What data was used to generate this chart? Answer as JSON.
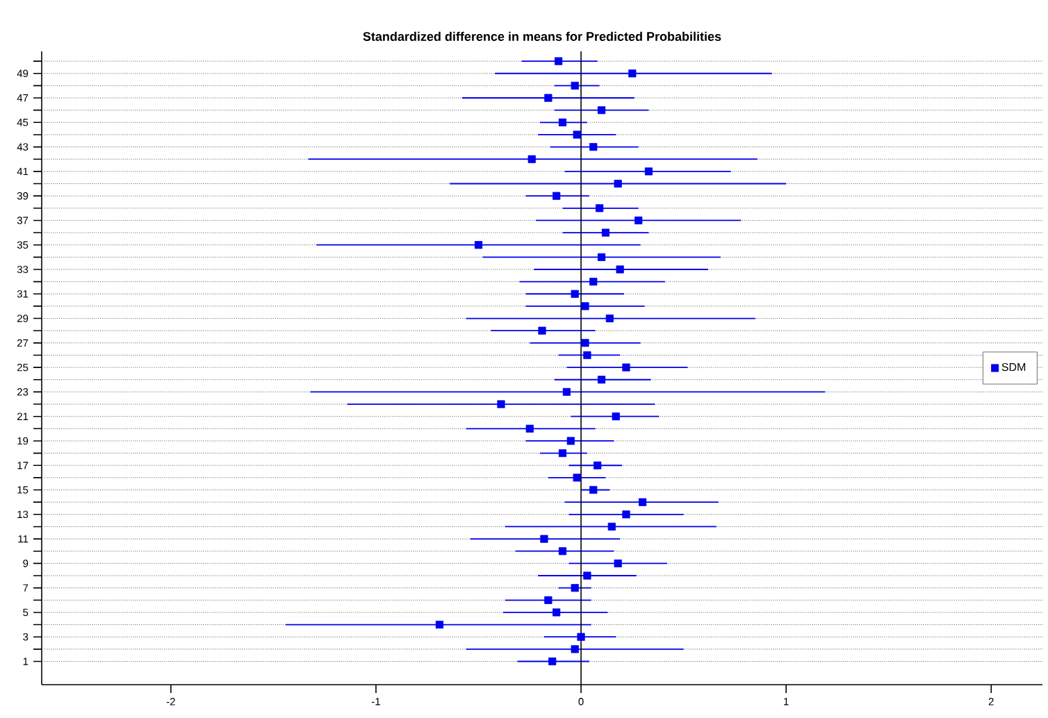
{
  "chart_data": {
    "type": "scatter",
    "title": "Standardized difference in means for Predicted Probabilities",
    "series": [
      {
        "name": "SDM",
        "color": "#0000ee",
        "x": [
          -0.14,
          -0.03,
          0.0,
          -0.69,
          -0.12,
          -0.16,
          -0.03,
          0.03,
          0.18,
          -0.09,
          -0.18,
          0.15,
          0.22,
          0.3,
          0.06,
          -0.02,
          0.08,
          -0.09,
          -0.05,
          -0.25,
          0.17,
          -0.39,
          -0.07,
          0.1,
          0.22,
          0.03,
          0.02,
          -0.19,
          0.14,
          0.02,
          -0.03,
          0.06,
          0.19,
          0.1,
          -0.5,
          0.12,
          0.28,
          0.09,
          -0.12,
          0.18,
          0.33,
          -0.24,
          0.06,
          -0.02,
          -0.09,
          0.1,
          -0.16,
          -0.03,
          0.25,
          -0.11
        ],
        "values": [
          1,
          2,
          3,
          4,
          5,
          6,
          7,
          8,
          9,
          10,
          11,
          12,
          13,
          14,
          15,
          16,
          17,
          18,
          19,
          20,
          21,
          22,
          23,
          24,
          25,
          26,
          27,
          28,
          29,
          30,
          31,
          32,
          33,
          34,
          35,
          36,
          37,
          38,
          39,
          40,
          41,
          42,
          43,
          44,
          45,
          46,
          47,
          48,
          49,
          50
        ],
        "xerrors": [
          [
            -0.31,
            0.04
          ],
          [
            -0.56,
            0.5
          ],
          [
            -0.18,
            0.17
          ],
          [
            -1.44,
            0.05
          ],
          [
            -0.38,
            0.13
          ],
          [
            -0.37,
            0.05
          ],
          [
            -0.11,
            0.05
          ],
          [
            -0.21,
            0.27
          ],
          [
            -0.06,
            0.42
          ],
          [
            -0.32,
            0.16
          ],
          [
            -0.54,
            0.19
          ],
          [
            -0.37,
            0.66
          ],
          [
            -0.06,
            0.5
          ],
          [
            -0.08,
            0.67
          ],
          [
            0.0,
            0.14
          ],
          [
            -0.16,
            0.12
          ],
          [
            -0.06,
            0.2
          ],
          [
            -0.2,
            0.03
          ],
          [
            -0.27,
            0.16
          ],
          [
            -0.56,
            0.07
          ],
          [
            -0.05,
            0.38
          ],
          [
            -1.14,
            0.36
          ],
          [
            -1.32,
            1.19
          ],
          [
            -0.13,
            0.34
          ],
          [
            -0.07,
            0.52
          ],
          [
            -0.11,
            0.19
          ],
          [
            -0.25,
            0.29
          ],
          [
            -0.44,
            0.07
          ],
          [
            -0.56,
            0.85
          ],
          [
            -0.27,
            0.31
          ],
          [
            -0.27,
            0.21
          ],
          [
            -0.3,
            0.41
          ],
          [
            -0.23,
            0.62
          ],
          [
            -0.48,
            0.68
          ],
          [
            -1.29,
            0.29
          ],
          [
            -0.09,
            0.33
          ],
          [
            -0.22,
            0.78
          ],
          [
            -0.09,
            0.28
          ],
          [
            -0.27,
            0.04
          ],
          [
            -0.64,
            1.0
          ],
          [
            -0.08,
            0.73
          ],
          [
            -1.33,
            0.86
          ],
          [
            -0.15,
            0.28
          ],
          [
            -0.21,
            0.17
          ],
          [
            -0.2,
            0.03
          ],
          [
            -0.13,
            0.33
          ],
          [
            -0.58,
            0.26
          ],
          [
            -0.13,
            0.09
          ],
          [
            -0.42,
            0.93
          ],
          [
            -0.29,
            0.08
          ]
        ]
      }
    ],
    "marker": "square",
    "grid": "y",
    "legend": "right",
    "xlim": [
      -2.63,
      2.25
    ],
    "ylim": [
      -0.9,
      50.8
    ],
    "xticks": [
      -2,
      -1,
      0,
      1,
      2
    ],
    "yticks": [
      1,
      {
        "value": 2,
        "label": null
      },
      3,
      {
        "value": 4,
        "label": null
      },
      5,
      {
        "value": 6,
        "label": null
      },
      7,
      {
        "value": 8,
        "label": null
      },
      9,
      {
        "value": 10,
        "label": null
      },
      11,
      {
        "value": 12,
        "label": null
      },
      13,
      {
        "value": 14,
        "label": null
      },
      15,
      {
        "value": 16,
        "label": null
      },
      17,
      {
        "value": 18,
        "label": null
      },
      19,
      {
        "value": 20,
        "label": null
      },
      21,
      {
        "value": 22,
        "label": null
      },
      23,
      {
        "value": 24,
        "label": null
      },
      25,
      {
        "value": 26,
        "label": null
      },
      27,
      {
        "value": 28,
        "label": null
      },
      29,
      {
        "value": 30,
        "label": null
      },
      31,
      {
        "value": 32,
        "label": null
      },
      33,
      {
        "value": 34,
        "label": null
      },
      35,
      {
        "value": 36,
        "label": null
      },
      37,
      {
        "value": 38,
        "label": null
      },
      39,
      {
        "value": 40,
        "label": null
      },
      41,
      {
        "value": 42,
        "label": null
      },
      43,
      {
        "value": 44,
        "label": null
      },
      45,
      {
        "value": 46,
        "label": null
      },
      47,
      {
        "value": 48,
        "label": null
      },
      49,
      {
        "value": 50,
        "label": null
      }
    ],
    "ref_lines": [
      {
        "axis": "x",
        "value": 0,
        "color": "#000000"
      }
    ]
  }
}
